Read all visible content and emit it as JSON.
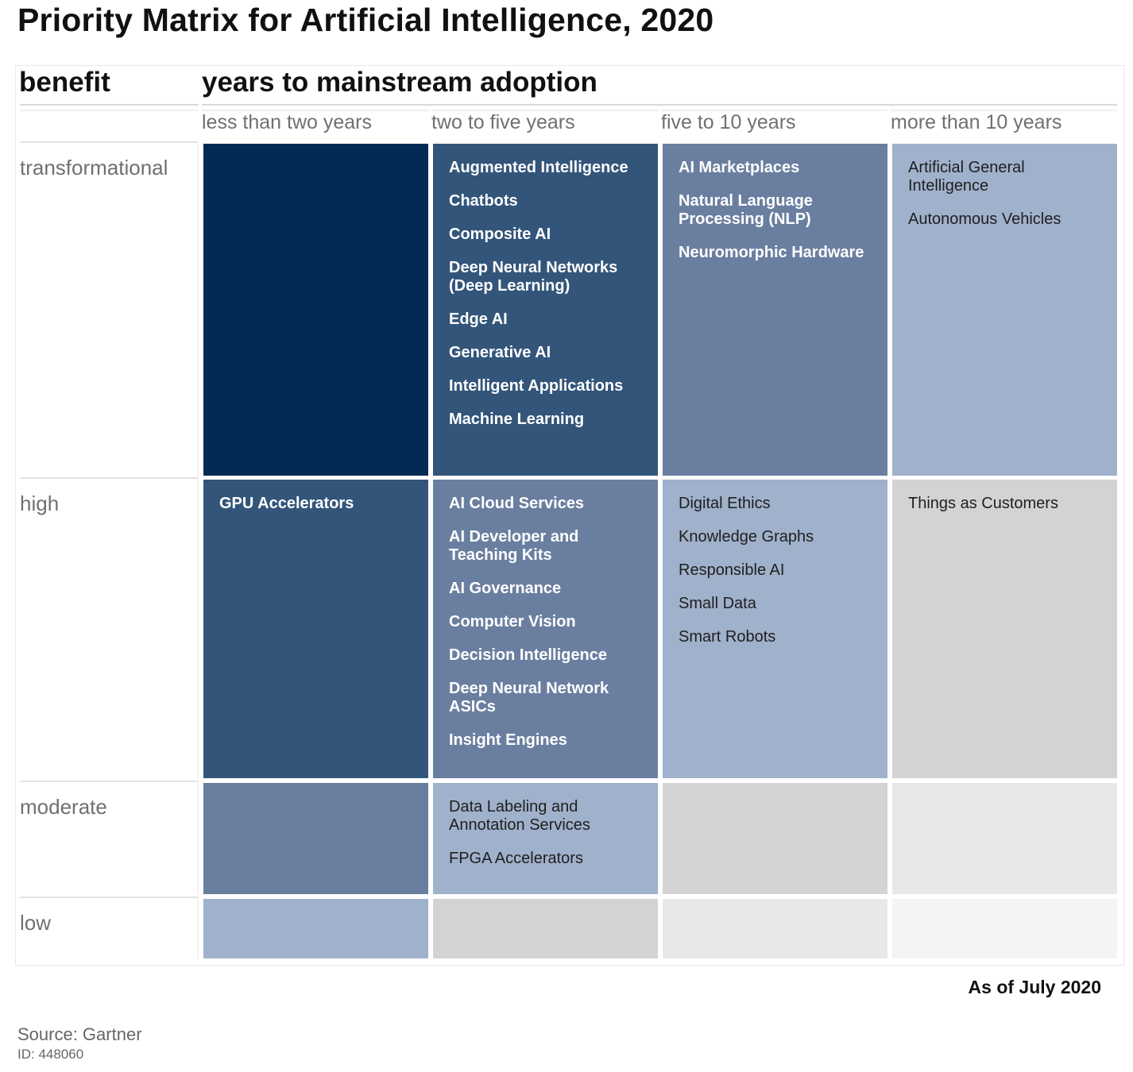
{
  "chart_data": {
    "type": "table",
    "title": "Priority Matrix for Artificial Intelligence, 2020",
    "row_axis_label": "benefit",
    "column_axis_label": "years to mainstream adoption",
    "columns": [
      "less than two years",
      "two to five years",
      "five to 10 years",
      "more than 10 years"
    ],
    "rows": [
      "transformational",
      "high",
      "moderate",
      "low"
    ],
    "cells": [
      [
        {
          "color": "#032a52",
          "items": []
        },
        {
          "color": "#33557a",
          "items": [
            "Augmented Intelligence",
            "Chatbots",
            "Composite AI",
            "Deep Neural Networks (Deep Learning)",
            "Edge AI",
            "Generative AI",
            "Intelligent Applications",
            "Machine Learning"
          ]
        },
        {
          "color": "#6a7fa0",
          "items": [
            "AI Marketplaces",
            "Natural Language Processing (NLP)",
            "Neuromorphic Hardware"
          ]
        },
        {
          "color": "#9fb1cb",
          "items": [
            "Artificial General Intelligence",
            "Autonomous Vehicles"
          ]
        }
      ],
      [
        {
          "color": "#33557a",
          "items": [
            "GPU Accelerators"
          ]
        },
        {
          "color": "#6a7fa0",
          "items": [
            "AI Cloud Services",
            "AI Developer and Teaching Kits",
            "AI Governance",
            "Computer Vision",
            "Decision Intelligence",
            "Deep Neural Network ASICs",
            "Insight Engines"
          ]
        },
        {
          "color": "#9fb1cb",
          "items": [
            "Digital Ethics",
            "Knowledge Graphs",
            "Responsible AI",
            "Small Data",
            "Smart Robots"
          ]
        },
        {
          "color": "#d3d3d3",
          "items": [
            "Things as Customers"
          ]
        }
      ],
      [
        {
          "color": "#6a7fa0",
          "items": []
        },
        {
          "color": "#9fb1cb",
          "items": [
            "Data Labeling and Annotation Services",
            "FPGA Accelerators"
          ]
        },
        {
          "color": "#d3d3d3",
          "items": []
        },
        {
          "color": "#e8e8e8",
          "items": []
        }
      ],
      [
        {
          "color": "#9fb1cb",
          "items": []
        },
        {
          "color": "#d3d3d3",
          "items": []
        },
        {
          "color": "#e8e8e8",
          "items": []
        },
        {
          "color": "#f4f4f4",
          "items": []
        }
      ]
    ]
  },
  "footer": {
    "as_of": "As of July 2020",
    "source": "Source: Gartner",
    "id": "ID: 448060"
  }
}
